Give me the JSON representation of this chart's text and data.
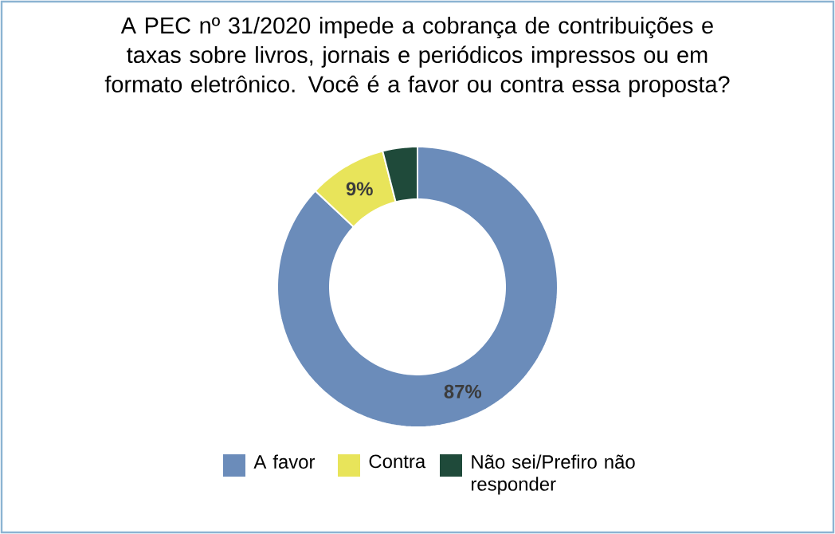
{
  "chart_data": {
    "type": "donut",
    "title": "A PEC nº 31/2020 impede a cobrança de contribuições e taxas sobre livros, jornais e periódicos impressos ou em formato eletrônico. Você é a favor ou contra essa proposta?",
    "categories": [
      "A favor",
      "Contra",
      "Não sei/Prefiro não responder"
    ],
    "values": [
      87,
      9,
      4
    ],
    "colors": [
      "#6b8cba",
      "#e8e45a",
      "#1f4a3a"
    ],
    "value_labels": [
      "87%",
      "9%",
      null
    ],
    "legend": "bottom"
  }
}
